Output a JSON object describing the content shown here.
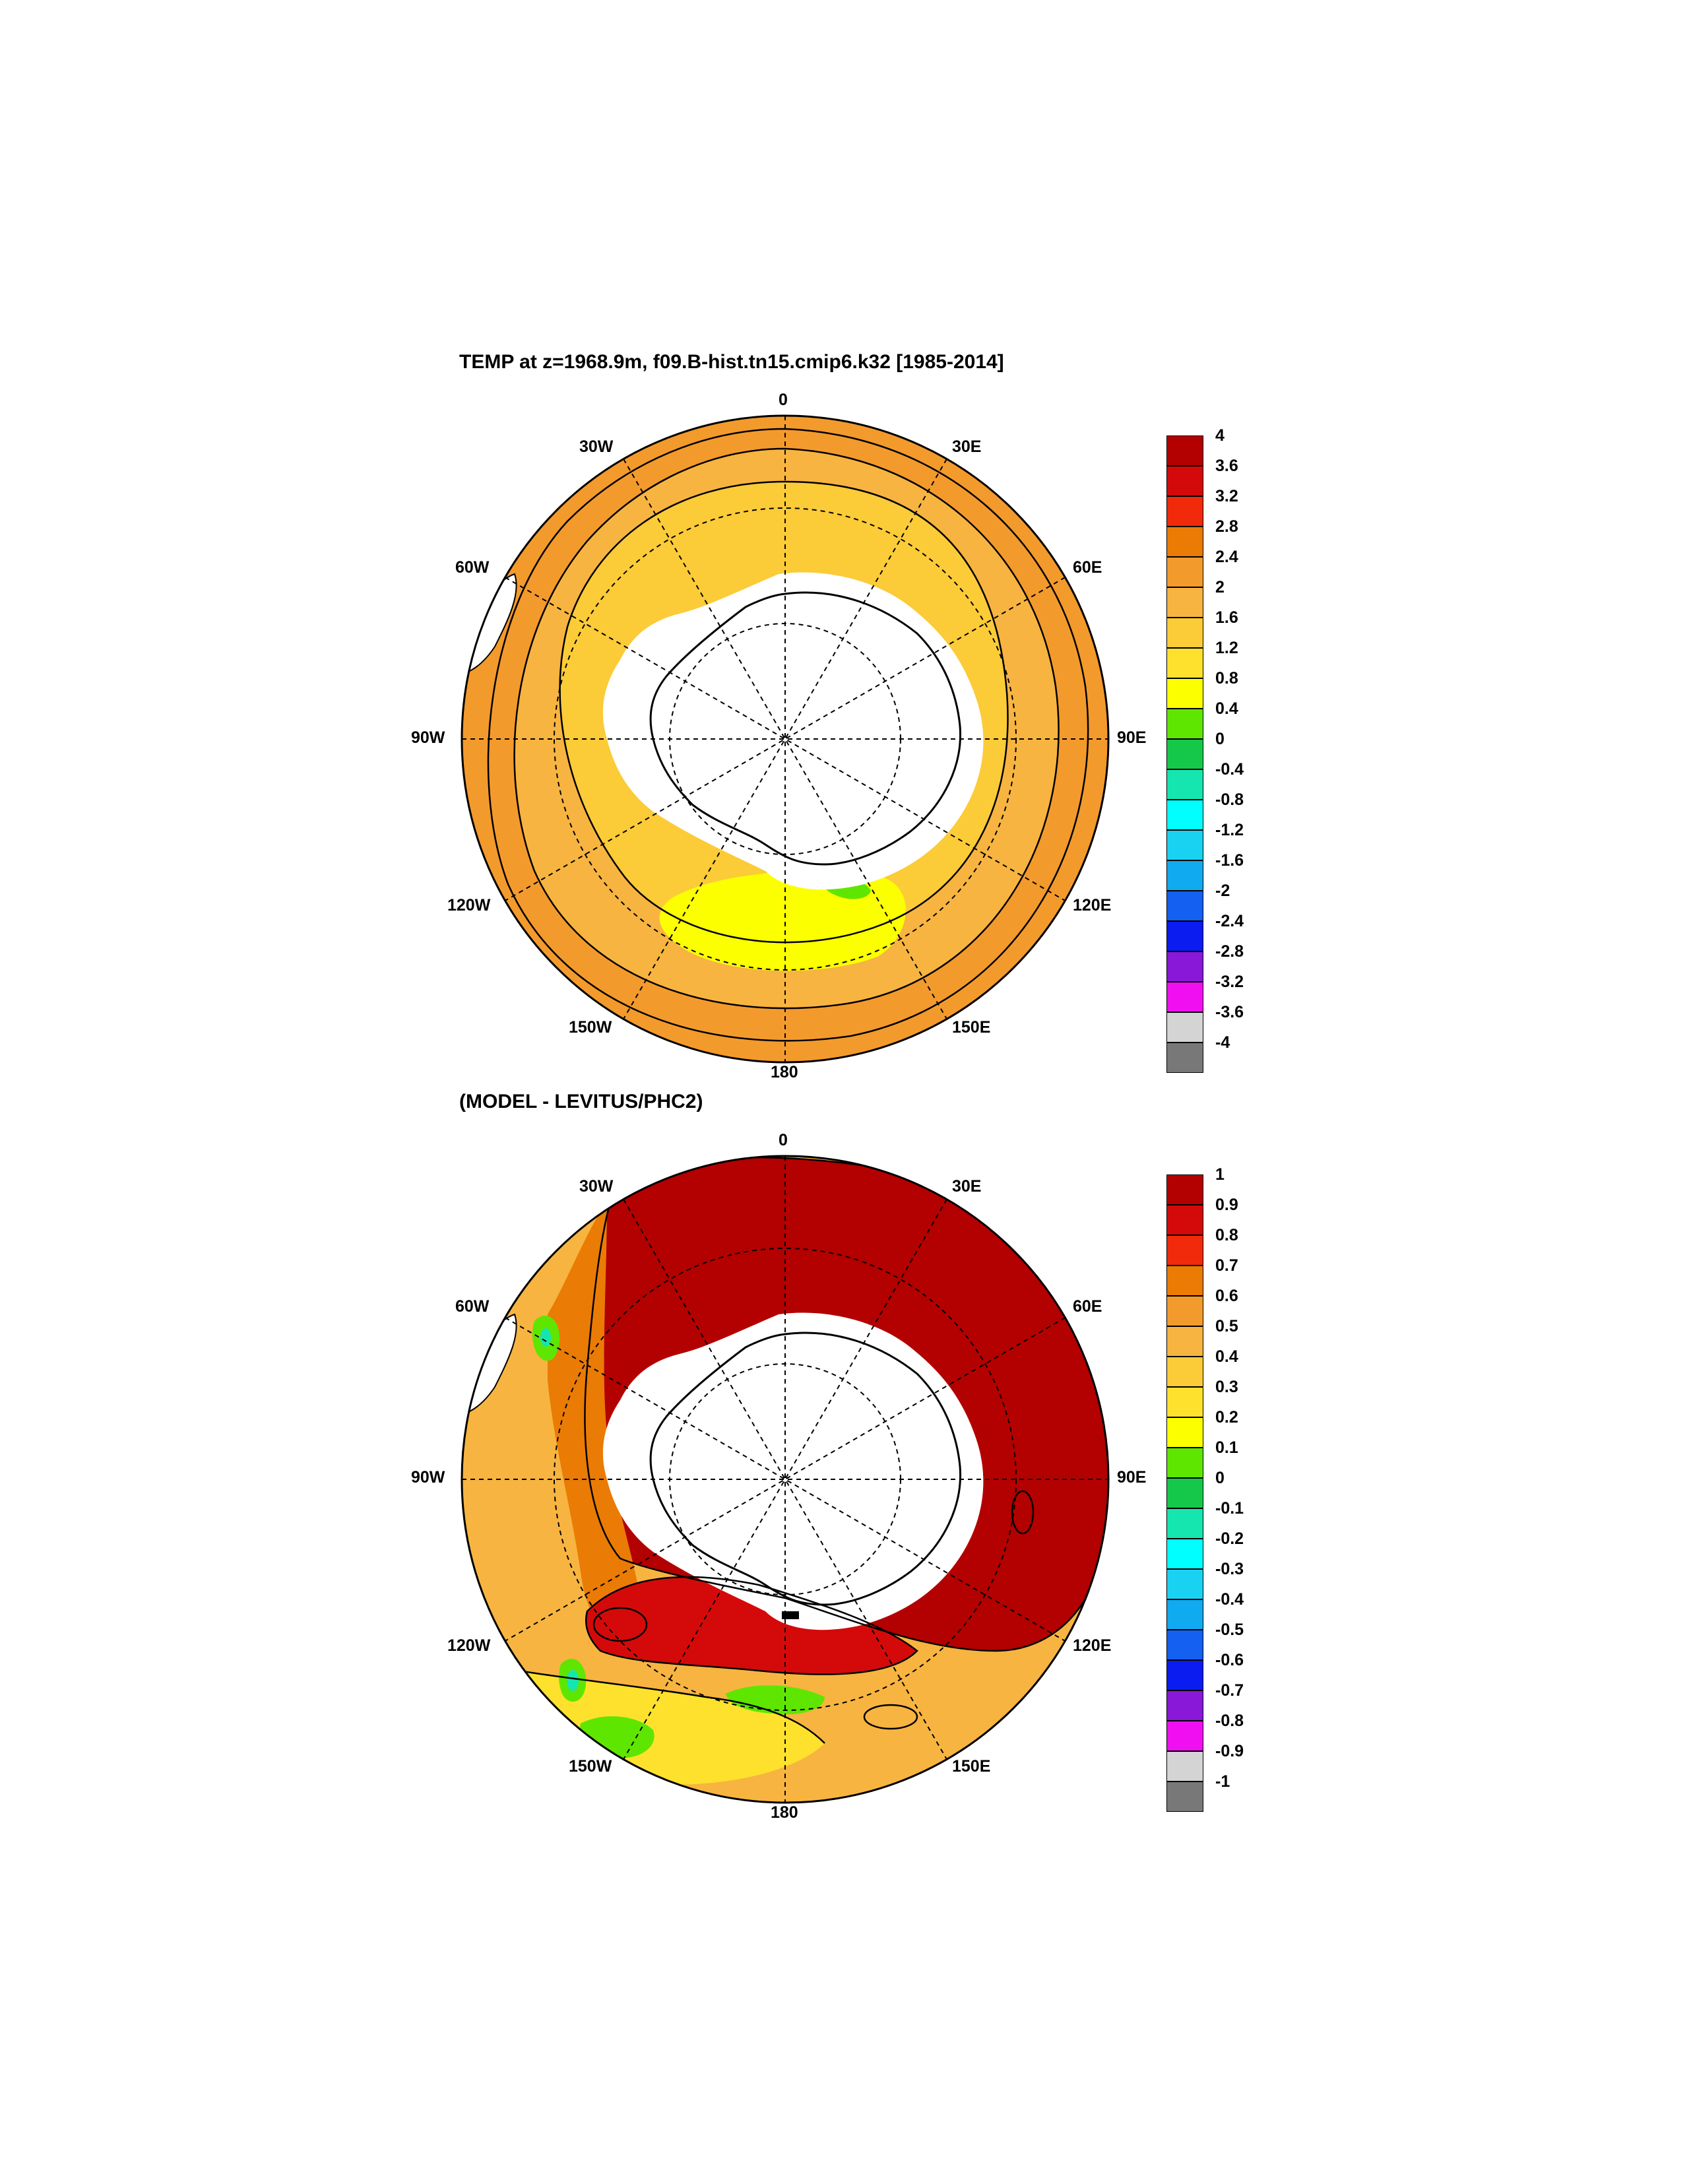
{
  "figure": {
    "title_top": "TEMP at z=1968.9m, f09.B-hist.tn15.cmip6.k32 [1985-2014]",
    "title_bottom": "(MODEL - LEVITUS/PHC2)"
  },
  "longitude_labels": {
    "lon_0": "0",
    "lon_30e": "30E",
    "lon_60e": "60E",
    "lon_90e": "90E",
    "lon_120e": "120E",
    "lon_150e": "150E",
    "lon_180": "180",
    "lon_150w": "150W",
    "lon_120w": "120W",
    "lon_90w": "90W",
    "lon_60w": "60W",
    "lon_30w": "30W"
  },
  "colorbar_top": {
    "labels": [
      "4",
      "3.6",
      "3.2",
      "2.8",
      "2.4",
      "2",
      "1.6",
      "1.2",
      "0.8",
      "0.4",
      "0",
      "-0.4",
      "-0.8",
      "-1.2",
      "-1.6",
      "-2",
      "-2.4",
      "-2.8",
      "-3.2",
      "-3.6",
      "-4"
    ],
    "colors": [
      "#b30000",
      "#d40a0a",
      "#f02a0a",
      "#ea7b05",
      "#f39a2c",
      "#f7b440",
      "#fbcb38",
      "#fde12d",
      "#fbff00",
      "#5fe600",
      "#16c84a",
      "#15e6b0",
      "#00ffff",
      "#19d2f2",
      "#10aaf0",
      "#1460f0",
      "#0a1cf0",
      "#8a18d8",
      "#f00ff0",
      "#d4d4d4",
      "#787878"
    ]
  },
  "colorbar_bottom": {
    "labels": [
      "1",
      "0.9",
      "0.8",
      "0.7",
      "0.6",
      "0.5",
      "0.4",
      "0.3",
      "0.2",
      "0.1",
      "0",
      "-0.1",
      "-0.2",
      "-0.3",
      "-0.4",
      "-0.5",
      "-0.6",
      "-0.7",
      "-0.8",
      "-0.9",
      "-1"
    ],
    "colors": [
      "#b30000",
      "#d40a0a",
      "#f02a0a",
      "#ea7b05",
      "#f39a2c",
      "#f7b440",
      "#fbcb38",
      "#fde12d",
      "#fbff00",
      "#5fe600",
      "#16c84a",
      "#15e6b0",
      "#00ffff",
      "#19d2f2",
      "#10aaf0",
      "#1460f0",
      "#0a1cf0",
      "#8a18d8",
      "#f00ff0",
      "#d4d4d4",
      "#787878"
    ]
  },
  "colors": {
    "top_outer": "#f39a2c",
    "top_middle": "#f7b440",
    "top_inner": "#fbcb38",
    "top_ross": "#fbff00",
    "top_green": "#5fe600",
    "bottom_outer": "#f7b440",
    "bottom_dark": "#b30000",
    "bottom_red": "#d40a0a",
    "bottom_orange": "#ea7b05",
    "bottom_yellow": "#fde12d",
    "bottom_green": "#5fe600",
    "bottom_cyan": "#15e6b0",
    "land": "#ffffff"
  }
}
